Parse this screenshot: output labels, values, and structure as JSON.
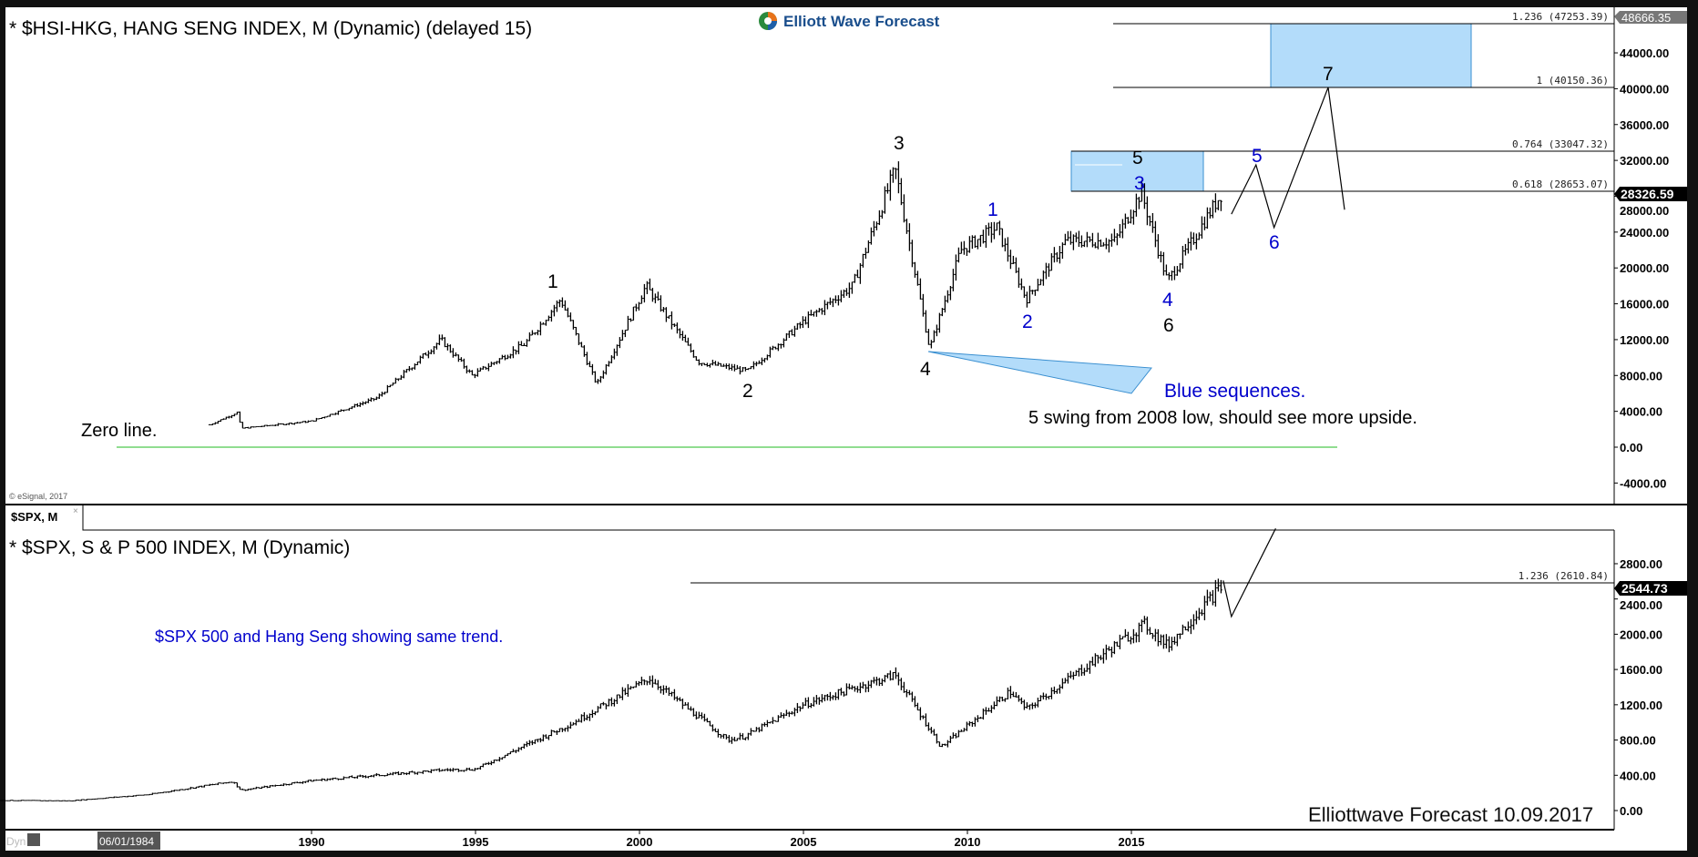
{
  "colors": {
    "wave_blue": "#0000cc",
    "box_fill": "#b3dcfa",
    "box_stroke": "#3a8fd0",
    "zero_line": "#22bb22",
    "frame": "#111111"
  },
  "logo": {
    "text": "Elliott Wave Forecast"
  },
  "top_pane": {
    "title": "* $HSI-HKG, HANG SENG INDEX, M (Dynamic) (delayed 15)",
    "copyright": "© eSignal, 2017",
    "zero_line_label": "Zero line.",
    "blue_seq_label": "Blue sequences.",
    "comment": "5 swing from 2008 low, should see more upside.",
    "last_price": "28326.59",
    "max_price_tag": "48666.35",
    "fib_labels": [
      "1.236 (47253.39)",
      "1 (40150.36)",
      "0.764 (33047.32)",
      "0.618 (28653.07)"
    ],
    "wave_labels": {
      "w1": "1",
      "w2": "2",
      "w3": "3",
      "w4": "4",
      "w5": "5",
      "b3": "3",
      "b1": "1",
      "b2": "2",
      "b4": "4",
      "w6": "6",
      "b5": "5",
      "b6": "6",
      "w7": "7"
    }
  },
  "bottom_pane": {
    "tab_label": "$SPX, M",
    "tab_close": "×",
    "title": "* $SPX, S & P 500 INDEX, M (Dynamic)",
    "comment": "$SPX 500 and Hang Seng showing same trend.",
    "fib_label": "1.236 (2610.84)",
    "last_price": "2544.73",
    "watermark": "Elliottwave Forecast  10.09.2017"
  },
  "time_axis": {
    "mode": "Dyn",
    "cursor_date": "06/01/1984",
    "years": [
      "1990",
      "1995",
      "2000",
      "2005",
      "2010",
      "2015"
    ]
  },
  "chart_data": [
    {
      "type": "ohlc",
      "title": "$HSI-HKG, HANG SENG INDEX, M",
      "ylim": [
        -6000,
        50000
      ],
      "yticks": [
        "44000.00",
        "40000.00",
        "36000.00",
        "32000.00",
        "28000.00",
        "24000.00",
        "20000.00",
        "16000.00",
        "12000.00",
        "8000.00",
        "4000.00",
        "0.00",
        "-4000.00"
      ],
      "key_points": [
        [
          1986.9,
          2500
        ],
        [
          1987.75,
          3900
        ],
        [
          1987.85,
          2100
        ],
        [
          1990.0,
          2900
        ],
        [
          1992.0,
          5500
        ],
        [
          1993.95,
          12000
        ],
        [
          1994.9,
          8000
        ],
        [
          1996.5,
          11500
        ],
        [
          1997.6,
          16500
        ],
        [
          1998.7,
          7000
        ],
        [
          2000.2,
          18000
        ],
        [
          2001.8,
          9500
        ],
        [
          2003.3,
          8500
        ],
        [
          2005.0,
          14000
        ],
        [
          2006.5,
          18000
        ],
        [
          2007.8,
          31000
        ],
        [
          2008.85,
          11000
        ],
        [
          2009.8,
          22000
        ],
        [
          2010.9,
          24500
        ],
        [
          2011.8,
          16500
        ],
        [
          2013.0,
          23000
        ],
        [
          2014.5,
          23000
        ],
        [
          2015.3,
          28500
        ],
        [
          2016.1,
          18500
        ],
        [
          2017.75,
          28300
        ]
      ],
      "fib_levels": [
        {
          "ratio": 1.236,
          "value": 47253.39
        },
        {
          "ratio": 1,
          "value": 40150.36
        },
        {
          "ratio": 0.764,
          "value": 33047.32
        },
        {
          "ratio": 0.618,
          "value": 28653.07
        }
      ],
      "projection": [
        [
          2018.05,
          26000
        ],
        [
          2018.8,
          31500
        ],
        [
          2019.35,
          24500
        ],
        [
          2021.0,
          40150
        ],
        [
          2021.5,
          26500
        ]
      ]
    },
    {
      "type": "ohlc",
      "title": "$SPX, S & P 500 INDEX, M",
      "ylim": [
        -100,
        3600
      ],
      "yticks": [
        "2800.00",
        "2400.00",
        "2000.00",
        "1600.00",
        "1200.00",
        "800.00",
        "400.00",
        "0.00"
      ],
      "key_points": [
        [
          1980.4,
          115
        ],
        [
          1982.6,
          110
        ],
        [
          1985.0,
          180
        ],
        [
          1987.6,
          330
        ],
        [
          1987.85,
          230
        ],
        [
          1990.0,
          340
        ],
        [
          1994.0,
          460
        ],
        [
          1995.0,
          470
        ],
        [
          1998.0,
          1000
        ],
        [
          2000.3,
          1500
        ],
        [
          2002.7,
          800
        ],
        [
          2003.2,
          840
        ],
        [
          2005.0,
          1200
        ],
        [
          2007.8,
          1540
        ],
        [
          2009.2,
          720
        ],
        [
          2011.3,
          1350
        ],
        [
          2011.8,
          1150
        ],
        [
          2015.4,
          2110
        ],
        [
          2016.1,
          1870
        ],
        [
          2017.75,
          2545
        ]
      ],
      "fib_levels": [
        {
          "ratio": 1.236,
          "value": 2610.84
        }
      ],
      "projection": [
        [
          2017.8,
          2610
        ],
        [
          2018.05,
          2200
        ],
        [
          2019.4,
          3200
        ]
      ]
    }
  ]
}
